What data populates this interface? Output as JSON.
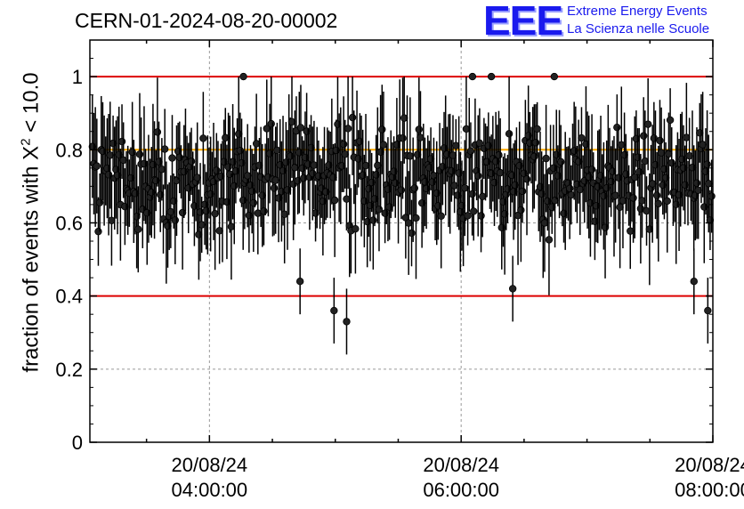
{
  "header": {
    "run_id": "CERN-01-2024-08-20-00002",
    "logo_text": "EEE",
    "logo_line1": "Extreme Energy Events",
    "logo_line2": "La Scienza nelle Scuole"
  },
  "colors": {
    "limit_lines": "#dd0000",
    "mean_line": "#ffaa00",
    "points": "#000000",
    "grid": "#999999",
    "logo": "#1a1aee"
  },
  "chart_data": {
    "type": "scatter",
    "title": "CERN-01-2024-08-20-00002",
    "ylabel_prefix": "fraction of events with X",
    "ylabel_sup": "2",
    "ylabel_suffix": " < 10.0",
    "xlabel": "",
    "ylim": [
      0,
      1.1
    ],
    "yticks": [
      "0",
      "0.2",
      "0.4",
      "0.6",
      "0.8",
      "1"
    ],
    "ytick_values": [
      0,
      0.2,
      0.4,
      0.6,
      0.8,
      1.0
    ],
    "xlim_hours": [
      3.05,
      8.0
    ],
    "xticks": [
      {
        "hour": 4,
        "date": "20/08/24",
        "time": "04:00:00"
      },
      {
        "hour": 6,
        "date": "20/08/24",
        "time": "06:00:00"
      },
      {
        "hour": 8,
        "date": "20/08/24",
        "time": "08:00:00"
      }
    ],
    "grid": true,
    "hlines": [
      {
        "y": 1.0,
        "color": "#dd0000"
      },
      {
        "y": 0.8,
        "color": "#ffaa00"
      },
      {
        "y": 0.4,
        "color": "#dd0000"
      }
    ],
    "n_points": 420,
    "typical_y_range": [
      0.55,
      0.9
    ],
    "typical_error": 0.12,
    "outliers": [
      {
        "hour": 4.27,
        "y": 1.0
      },
      {
        "hour": 6.09,
        "y": 1.0
      },
      {
        "hour": 6.24,
        "y": 1.0
      },
      {
        "hour": 6.74,
        "y": 1.0
      },
      {
        "hour": 4.99,
        "y": 0.36
      },
      {
        "hour": 5.09,
        "y": 0.33
      },
      {
        "hour": 4.72,
        "y": 0.44
      },
      {
        "hour": 6.41,
        "y": 0.42
      },
      {
        "hour": 7.85,
        "y": 0.44
      },
      {
        "hour": 7.96,
        "y": 0.36
      }
    ]
  }
}
